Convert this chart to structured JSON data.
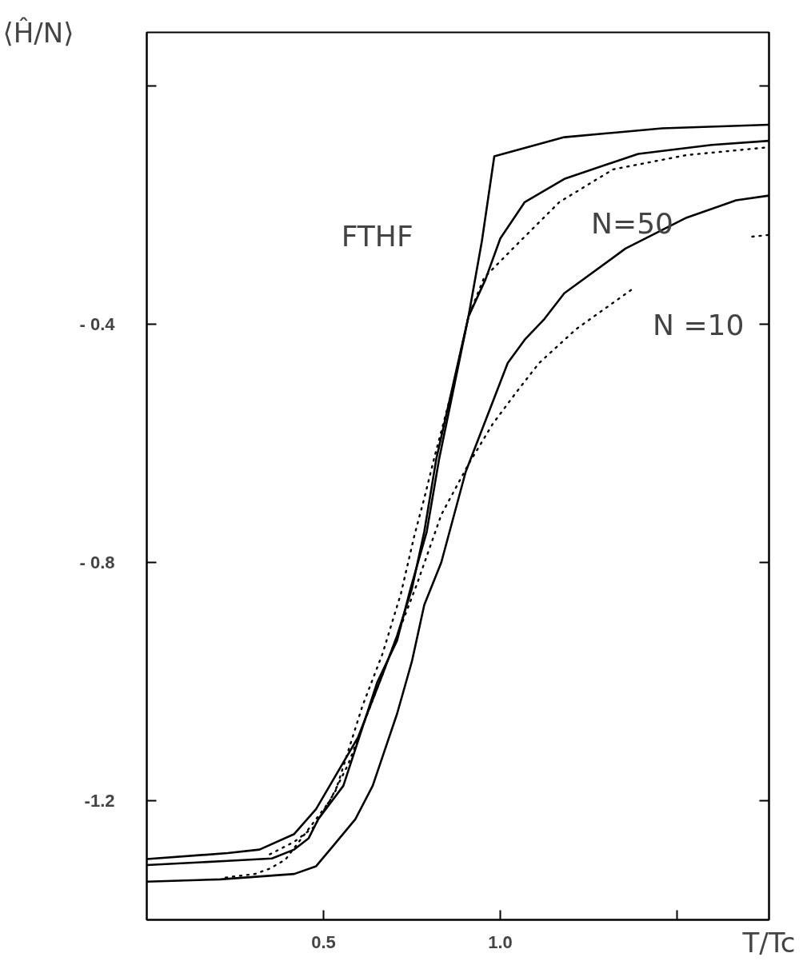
{
  "chart_data": {
    "type": "line",
    "xlabel": "T/Tc",
    "ylabel": "⟨Ĥ/N⟩",
    "xlim": [
      0,
      1.76
    ],
    "ylim": [
      -1.4,
      0.09
    ],
    "xticks": [
      {
        "value": 0.5,
        "label": "0.5"
      },
      {
        "value": 1.0,
        "label": "1.0"
      },
      {
        "value": 1.5,
        "label": null
      }
    ],
    "yticks": [
      {
        "value": 0,
        "label": null
      },
      {
        "value": -0.4,
        "label": "- 0.4"
      },
      {
        "value": -0.8,
        "label": "- 0.8"
      },
      {
        "value": -1.2,
        "label": "-1.2"
      }
    ],
    "series": [
      {
        "color": "#000000",
        "line_style": "solid",
        "x": [
          0,
          0.229,
          0.319,
          0.417,
          0.479,
          0.598,
          0.667,
          0.708,
          0.75,
          0.785,
          0.819,
          0.91,
          0.948,
          0.983,
          1.181,
          1.458,
          1.76
        ],
        "values": [
          -1.298,
          -1.288,
          -1.282,
          -1.256,
          -1.214,
          -1.093,
          -0.988,
          -0.923,
          -0.844,
          -0.748,
          -0.626,
          -0.387,
          -0.26,
          -0.118,
          -0.086,
          -0.071,
          -0.065
        ]
      },
      {
        "color": "#000000",
        "line_style": "solid",
        "x": [
          0,
          0.229,
          0.354,
          0.417,
          0.458,
          0.485,
          0.556,
          0.652,
          0.708,
          0.746,
          0.792,
          0.827,
          0.91,
          0.958,
          1.0,
          1.069,
          1.181,
          1.39,
          1.598,
          1.76
        ],
        "values": [
          -1.308,
          -1.301,
          -1.297,
          -1.282,
          -1.263,
          -1.231,
          -1.175,
          -1.001,
          -0.931,
          -0.844,
          -0.748,
          -0.626,
          -0.387,
          -0.325,
          -0.256,
          -0.195,
          -0.156,
          -0.114,
          -0.099,
          -0.092
        ]
      },
      {
        "color": "#000000",
        "line_style": "dotted",
        "x": [
          0.348,
          0.417,
          0.473,
          0.535,
          0.61,
          0.667,
          0.719,
          0.756,
          0.785,
          0.8125,
          0.865,
          0.91,
          0.954,
          1.042,
          1.167,
          1.319,
          1.527,
          1.756
        ],
        "values": [
          -1.29,
          -1.269,
          -1.244,
          -1.182,
          -1.041,
          -0.953,
          -0.852,
          -0.757,
          -0.692,
          -0.626,
          -0.508,
          -0.387,
          -0.322,
          -0.269,
          -0.195,
          -0.14,
          -0.116,
          -0.103
        ]
      },
      {
        "color": "#000000",
        "line_style": "solid",
        "x": [
          0,
          0.208,
          0.417,
          0.479,
          0.527,
          0.59,
          0.639,
          0.708,
          0.75,
          0.785,
          0.833,
          0.902,
          0.973,
          1.021,
          1.069,
          1.125,
          1.181,
          1.354,
          1.527,
          1.667,
          1.76
        ],
        "values": [
          -1.336,
          -1.332,
          -1.323,
          -1.31,
          -1.276,
          -1.231,
          -1.175,
          -1.054,
          -0.966,
          -0.871,
          -0.8,
          -0.648,
          -0.539,
          -0.465,
          -0.426,
          -0.391,
          -0.348,
          -0.273,
          -0.221,
          -0.192,
          -0.184
        ]
      },
      {
        "color": "#000000",
        "line_style": "dotted",
        "x": [
          0.223,
          0.306,
          0.348,
          0.392,
          0.517,
          0.569,
          0.765,
          0.833,
          0.91,
          0.979,
          1.048,
          1.11,
          1.215,
          1.371,
          1.5,
          1.7125,
          1.76
        ],
        "values": [
          -1.329,
          -1.323,
          -1.314,
          -1.299,
          -1.201,
          -1.14,
          -0.835,
          -0.72,
          -0.635,
          -0.567,
          -0.512,
          -0.465,
          -0.408,
          -0.342,
          null,
          -0.253,
          -0.25
        ]
      }
    ],
    "annotations": [
      "FTHF",
      "N=50",
      "N =10"
    ]
  }
}
